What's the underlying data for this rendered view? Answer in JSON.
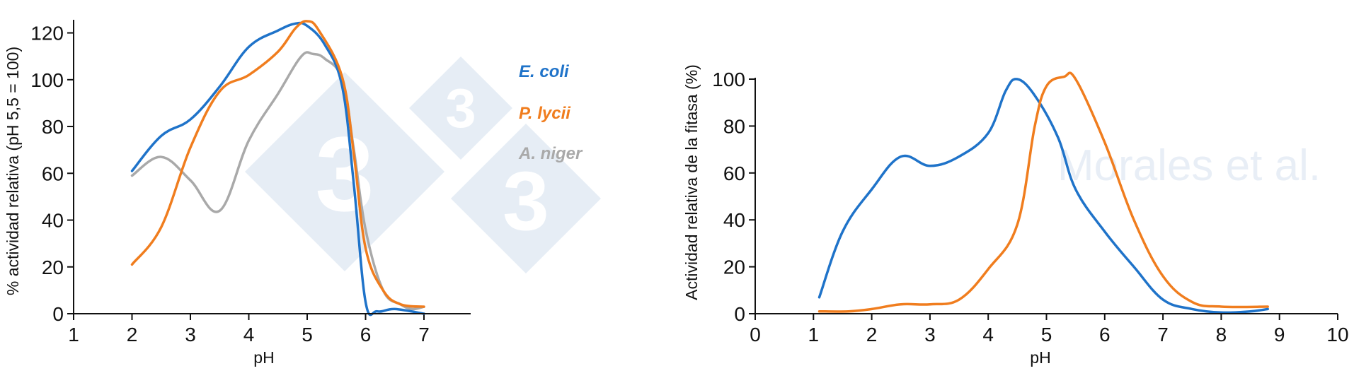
{
  "colors": {
    "ecoli": "#1f73c9",
    "plycii": "#f07d1e",
    "aniger": "#a9a9a9",
    "watermark": "#e6edf5",
    "watermark_text": "#e8eef6",
    "axis": "#111111"
  },
  "watermarks": {
    "text": "Morales et al.",
    "logo_digit": "3"
  },
  "chart_data": [
    {
      "type": "line",
      "title": "",
      "xlabel": "pH",
      "ylabel": "% actividad relativa (pH 5,5 = 100)",
      "xlim": [
        1,
        7.8
      ],
      "ylim": [
        0,
        125
      ],
      "xticks": [
        1,
        2,
        3,
        4,
        5,
        6,
        7
      ],
      "yticks": [
        0,
        20,
        40,
        60,
        80,
        100,
        120
      ],
      "legend_placement": "top-right",
      "series": [
        {
          "name": "E. coli",
          "color_key": "ecoli",
          "points": [
            [
              2.0,
              61
            ],
            [
              2.5,
              76
            ],
            [
              3.0,
              83
            ],
            [
              3.5,
              97
            ],
            [
              4.0,
              114
            ],
            [
              4.5,
              121
            ],
            [
              4.8,
              124
            ],
            [
              5.0,
              123
            ],
            [
              5.3,
              115
            ],
            [
              5.6,
              97
            ],
            [
              5.8,
              55
            ],
            [
              6.0,
              5
            ],
            [
              6.2,
              1
            ],
            [
              6.5,
              2
            ],
            [
              7.0,
              0
            ]
          ]
        },
        {
          "name": "P. lycii",
          "color_key": "plycii",
          "points": [
            [
              2.0,
              21
            ],
            [
              2.5,
              37
            ],
            [
              3.0,
              71
            ],
            [
              3.5,
              95
            ],
            [
              4.0,
              102
            ],
            [
              4.5,
              112
            ],
            [
              4.8,
              122
            ],
            [
              5.0,
              125
            ],
            [
              5.2,
              121
            ],
            [
              5.6,
              101
            ],
            [
              5.8,
              68
            ],
            [
              6.0,
              28
            ],
            [
              6.3,
              10
            ],
            [
              6.6,
              4
            ],
            [
              7.0,
              3
            ]
          ]
        },
        {
          "name": "A. niger",
          "color_key": "aniger",
          "points": [
            [
              2.0,
              59
            ],
            [
              2.5,
              67
            ],
            [
              3.0,
              57
            ],
            [
              3.5,
              44
            ],
            [
              4.0,
              74
            ],
            [
              4.5,
              94
            ],
            [
              4.9,
              110
            ],
            [
              5.1,
              111
            ],
            [
              5.3,
              109
            ],
            [
              5.6,
              100
            ],
            [
              5.8,
              70
            ],
            [
              6.0,
              36
            ],
            [
              6.3,
              10
            ],
            [
              6.6,
              4
            ],
            [
              6.8,
              2
            ],
            [
              7.0,
              3
            ]
          ]
        }
      ]
    },
    {
      "type": "line",
      "title": "",
      "xlabel": "pH",
      "ylabel": "Actividad relativa de la fitasa (%)",
      "xlim": [
        0,
        10
      ],
      "ylim": [
        0,
        100
      ],
      "xticks": [
        0,
        1,
        2,
        3,
        4,
        5,
        6,
        7,
        8,
        9,
        10
      ],
      "yticks": [
        0,
        20,
        40,
        60,
        80,
        100
      ],
      "series": [
        {
          "color_key": "ecoli",
          "points": [
            [
              1.1,
              7
            ],
            [
              1.5,
              35
            ],
            [
              2.0,
              53
            ],
            [
              2.5,
              67
            ],
            [
              3.0,
              63
            ],
            [
              3.5,
              67
            ],
            [
              4.0,
              77
            ],
            [
              4.3,
              95
            ],
            [
              4.5,
              100
            ],
            [
              4.8,
              93
            ],
            [
              5.2,
              75
            ],
            [
              5.5,
              53
            ],
            [
              6.0,
              35
            ],
            [
              6.5,
              20
            ],
            [
              7.0,
              6
            ],
            [
              7.5,
              2
            ],
            [
              8.0,
              0.5
            ],
            [
              8.5,
              1
            ],
            [
              8.8,
              2
            ]
          ]
        },
        {
          "color_key": "plycii",
          "points": [
            [
              1.1,
              1
            ],
            [
              1.6,
              1
            ],
            [
              2.0,
              2
            ],
            [
              2.5,
              4
            ],
            [
              3.0,
              4
            ],
            [
              3.5,
              6
            ],
            [
              4.0,
              19
            ],
            [
              4.5,
              38
            ],
            [
              4.8,
              80
            ],
            [
              5.0,
              97
            ],
            [
              5.3,
              101
            ],
            [
              5.5,
              100
            ],
            [
              6.0,
              73
            ],
            [
              6.5,
              40
            ],
            [
              7.0,
              16
            ],
            [
              7.5,
              5
            ],
            [
              8.0,
              3
            ],
            [
              8.8,
              3
            ]
          ]
        }
      ]
    }
  ]
}
